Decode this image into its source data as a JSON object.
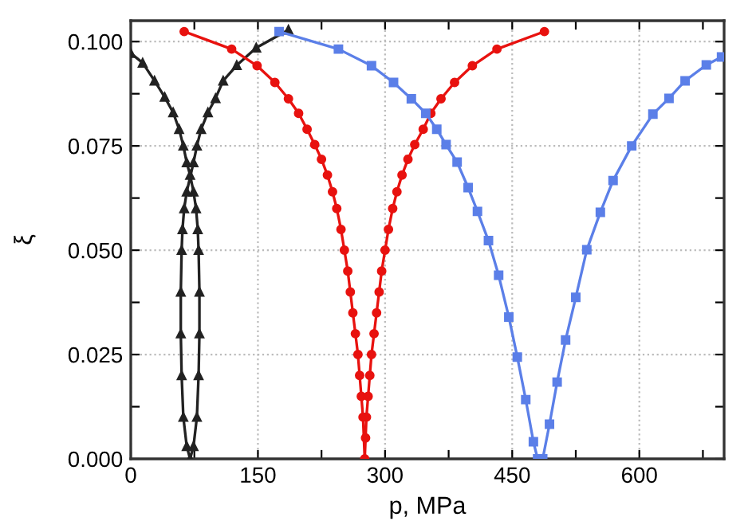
{
  "chart_data": {
    "type": "line",
    "xlabel": "p, MPa",
    "ylabel": "ξ",
    "xlim": [
      0,
      700
    ],
    "ylim": [
      0,
      0.105
    ],
    "xticks": [
      0,
      {
        "value": 75,
        "label": null
      },
      150,
      {
        "value": 225,
        "label": null
      },
      300,
      {
        "value": 375,
        "label": null
      },
      450,
      {
        "value": 525,
        "label": null
      },
      600,
      {
        "value": 675,
        "label": null
      }
    ],
    "yticks": [
      {
        "value": 0,
        "label": "0.000"
      },
      {
        "value": 0.0125,
        "label": null
      },
      {
        "value": 0.025,
        "label": "0.025"
      },
      {
        "value": 0.0375,
        "label": null
      },
      {
        "value": 0.05,
        "label": "0.050"
      },
      {
        "value": 0.0625,
        "label": null
      },
      {
        "value": 0.075,
        "label": "0.075"
      },
      {
        "value": 0.0875,
        "label": null
      },
      {
        "value": 0.1,
        "label": "0.100"
      }
    ],
    "grid": true,
    "line_style": "solid",
    "series": [
      {
        "color": "#222222",
        "marker": "triangle",
        "x": [
          0,
          14,
          28,
          40,
          50,
          57,
          62,
          66,
          70,
          74,
          77,
          79,
          80,
          81,
          81,
          80,
          78,
          74,
          70,
          66,
          62,
          60,
          59,
          59,
          60,
          61,
          63,
          66,
          74,
          78,
          83,
          91,
          100,
          109,
          125,
          148,
          186
        ],
        "values": [
          0.0972,
          0.0949,
          0.0906,
          0.0867,
          0.083,
          0.079,
          0.075,
          0.071,
          0.068,
          0.064,
          0.06,
          0.055,
          0.05,
          0.04,
          0.03,
          0.02,
          0.01,
          0.003,
          0.0,
          0.003,
          0.01,
          0.02,
          0.03,
          0.04,
          0.05,
          0.055,
          0.06,
          0.064,
          0.071,
          0.075,
          0.079,
          0.083,
          0.0864,
          0.0906,
          0.0943,
          0.0985,
          0.1028
        ]
      },
      {
        "color": "#e8120f",
        "marker": "circle",
        "x": [
          63,
          119,
          149,
          170,
          186,
          198,
          208,
          217,
          225,
          232,
          238,
          243,
          248,
          252,
          256,
          259,
          262,
          265,
          268,
          270,
          272,
          274,
          276,
          277,
          278,
          280,
          282,
          284,
          287,
          290,
          293,
          296,
          300,
          304,
          309,
          314,
          320,
          327,
          335,
          345,
          354,
          366,
          382,
          403,
          432,
          488
        ],
        "values": [
          0.1024,
          0.0982,
          0.0942,
          0.0902,
          0.0863,
          0.0828,
          0.079,
          0.0753,
          0.0718,
          0.068,
          0.064,
          0.06,
          0.055,
          0.05,
          0.045,
          0.04,
          0.035,
          0.03,
          0.025,
          0.02,
          0.015,
          0.01,
          0.0,
          0.005,
          0.01,
          0.015,
          0.02,
          0.025,
          0.03,
          0.035,
          0.04,
          0.045,
          0.05,
          0.055,
          0.06,
          0.064,
          0.068,
          0.0718,
          0.0753,
          0.079,
          0.0828,
          0.0863,
          0.0902,
          0.0942,
          0.0982,
          0.1024
        ]
      },
      {
        "color": "#5b7fe8",
        "marker": "square",
        "x": [
          175,
          245,
          284,
          310,
          331,
          348,
          361,
          372,
          385,
          398,
          409,
          422,
          434,
          446,
          456,
          466,
          475,
          480,
          486,
          494,
          503,
          513,
          525,
          538,
          554,
          569,
          591,
          616,
          635,
          654,
          679,
          697
        ],
        "values": [
          0.1024,
          0.0982,
          0.0942,
          0.0902,
          0.0863,
          0.0828,
          0.079,
          0.0753,
          0.0711,
          0.065,
          0.0593,
          0.0523,
          0.044,
          0.034,
          0.0244,
          0.0142,
          0.0041,
          0.0,
          0.0,
          0.0083,
          0.0184,
          0.0285,
          0.0387,
          0.0501,
          0.0591,
          0.0667,
          0.075,
          0.0826,
          0.0864,
          0.0906,
          0.0944,
          0.0963
        ]
      }
    ]
  }
}
